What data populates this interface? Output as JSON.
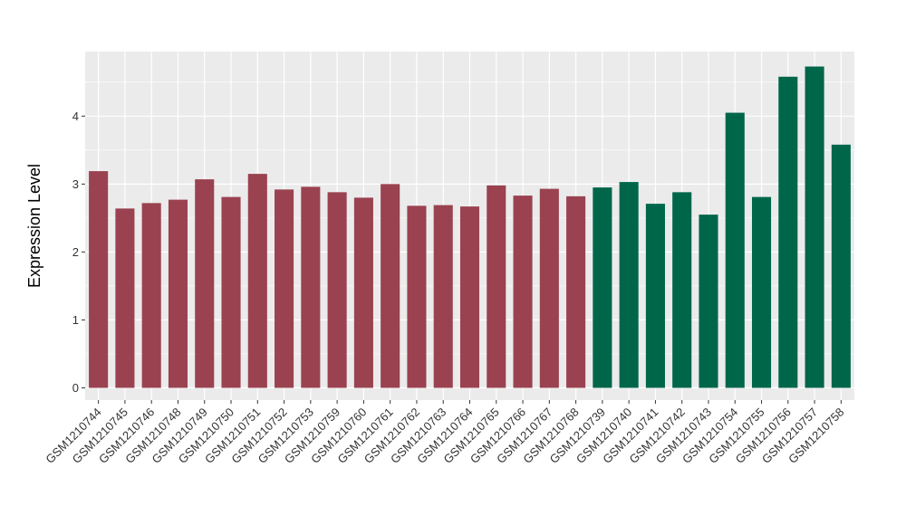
{
  "chart_data": {
    "type": "bar",
    "title": "",
    "xlabel": "",
    "ylabel": "Expression Level",
    "ylim": [
      -0.18,
      4.95
    ],
    "yticks": [
      0,
      1,
      2,
      3,
      4
    ],
    "grid": true,
    "legend": "none",
    "categories": [
      "GSM1210744",
      "GSM1210745",
      "GSM1210746",
      "GSM1210748",
      "GSM1210749",
      "GSM1210750",
      "GSM1210751",
      "GSM1210752",
      "GSM1210753",
      "GSM1210759",
      "GSM1210760",
      "GSM1210761",
      "GSM1210762",
      "GSM1210763",
      "GSM1210764",
      "GSM1210765",
      "GSM1210766",
      "GSM1210767",
      "GSM1210768",
      "GSM1210739",
      "GSM1210740",
      "GSM1210741",
      "GSM1210742",
      "GSM1210743",
      "GSM1210754",
      "GSM1210755",
      "GSM1210756",
      "GSM1210757",
      "GSM1210758"
    ],
    "values": [
      3.19,
      2.64,
      2.72,
      2.77,
      3.07,
      2.81,
      3.15,
      2.92,
      2.96,
      2.88,
      2.8,
      3.0,
      2.68,
      2.69,
      2.67,
      2.98,
      2.83,
      2.93,
      2.82,
      2.95,
      3.03,
      2.71,
      2.88,
      2.55,
      4.05,
      2.81,
      4.58,
      4.73,
      3.58
    ],
    "groups": [
      0,
      0,
      0,
      0,
      0,
      0,
      0,
      0,
      0,
      0,
      0,
      0,
      0,
      0,
      0,
      0,
      0,
      0,
      0,
      1,
      1,
      1,
      1,
      1,
      1,
      1,
      1,
      1,
      1
    ],
    "group_colors": [
      "#9a4250",
      "#00664a"
    ],
    "panel_color": "#ebebeb",
    "grid_color": "#ffffff"
  }
}
